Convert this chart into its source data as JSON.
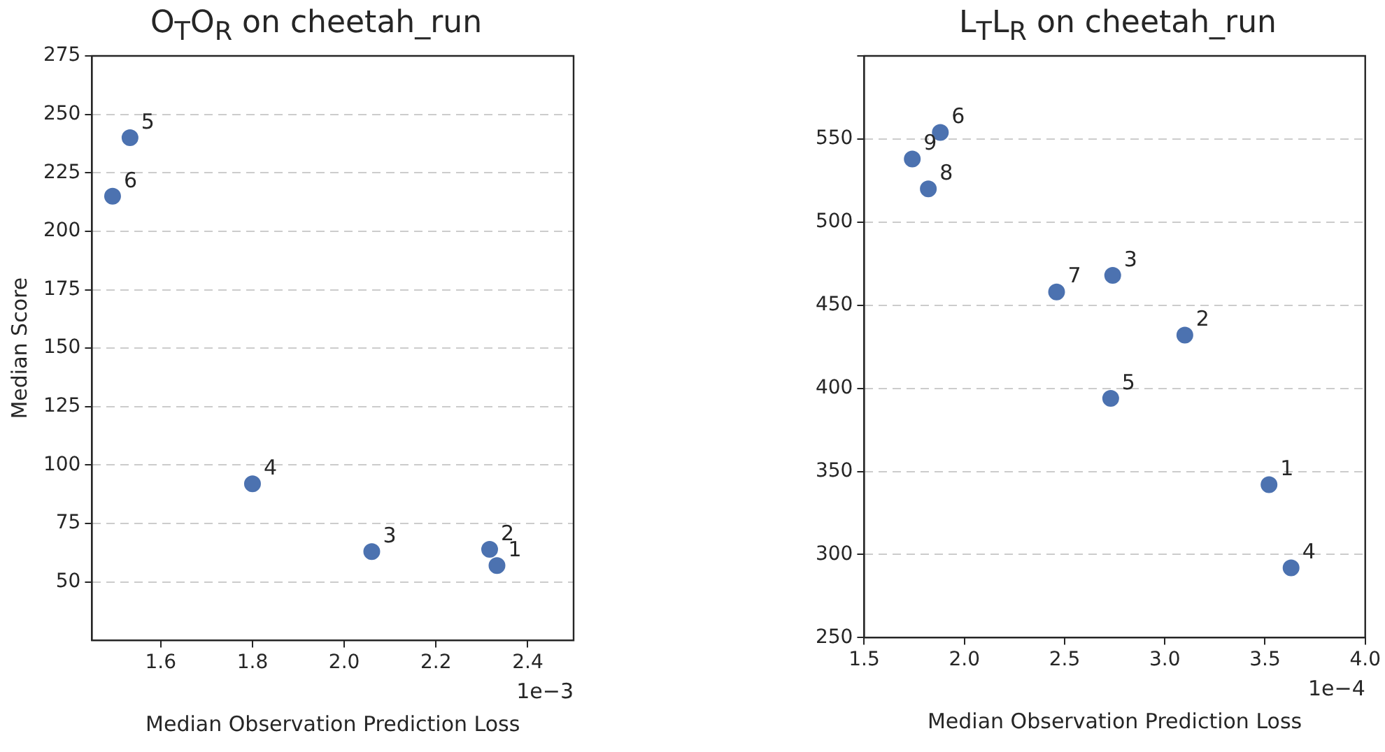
{
  "chart_data": [
    {
      "type": "scatter",
      "title": "O$_{T}$O$_{R}$ on cheetah_run",
      "xlabel": "Median Observation Prediction Loss",
      "ylabel": "Median Score",
      "x": [
        2.333,
        2.317,
        2.06,
        1.8,
        1.533,
        1.495
      ],
      "values": [
        57,
        64,
        63,
        92,
        240,
        215
      ],
      "color": "#4c72b0",
      "marker": "circle",
      "grid": "y",
      "xlim": [
        1.45,
        2.5
      ],
      "xticks": [
        1.6,
        1.8,
        {
          "value": 2,
          "label": "2.0"
        },
        2.2,
        2.4
      ],
      "ylim": [
        25,
        275
      ],
      "yticks": [
        50,
        75,
        100,
        125,
        150,
        175,
        200,
        225,
        250,
        275
      ],
      "annotations": [
        "1e−3",
        {
          "text": "1",
          "x": 2.333,
          "y": 57
        },
        {
          "text": "2",
          "x": 2.317,
          "y": 64
        },
        {
          "text": "3",
          "x": 2.06,
          "y": 63
        },
        {
          "text": "4",
          "x": 1.8,
          "y": 92
        },
        {
          "text": "5",
          "x": 1.533,
          "y": 240
        },
        {
          "text": "6",
          "x": 1.495,
          "y": 215
        }
      ]
    },
    {
      "type": "scatter",
      "title": "L$_{T}$L$_{R}$ on cheetah_run",
      "xlabel": "Median Observation Prediction Loss",
      "x": [
        3.52,
        3.1,
        2.74,
        3.63,
        2.73,
        1.88,
        2.46,
        1.82,
        1.74
      ],
      "values": [
        342,
        432,
        468,
        292,
        394,
        554,
        458,
        520,
        538
      ],
      "color": "#4c72b0",
      "marker": "circle",
      "grid": "y",
      "xlim": [
        1.5,
        4.0
      ],
      "xticks": [
        1.5,
        {
          "value": 2,
          "label": "2.0"
        },
        2.5,
        {
          "value": 3,
          "label": "3.0"
        },
        3.5,
        {
          "value": 4,
          "label": "4.0"
        }
      ],
      "ylim": [
        250,
        600
      ],
      "yticks": [
        250,
        300,
        350,
        400,
        450,
        500,
        550,
        {
          "value": 600,
          "label": null
        }
      ],
      "annotations": [
        "1e−4",
        {
          "text": "1",
          "x": 3.52,
          "y": 342
        },
        {
          "text": "2",
          "x": 3.1,
          "y": 432
        },
        {
          "text": "3",
          "x": 2.74,
          "y": 468
        },
        {
          "text": "4",
          "x": 3.63,
          "y": 292
        },
        {
          "text": "5",
          "x": 2.73,
          "y": 394
        },
        {
          "text": "6",
          "x": 1.88,
          "y": 554
        },
        {
          "text": "7",
          "x": 2.46,
          "y": 458
        },
        {
          "text": "8",
          "x": 1.82,
          "y": 520
        },
        {
          "text": "9",
          "x": 1.74,
          "y": 538
        }
      ]
    }
  ]
}
